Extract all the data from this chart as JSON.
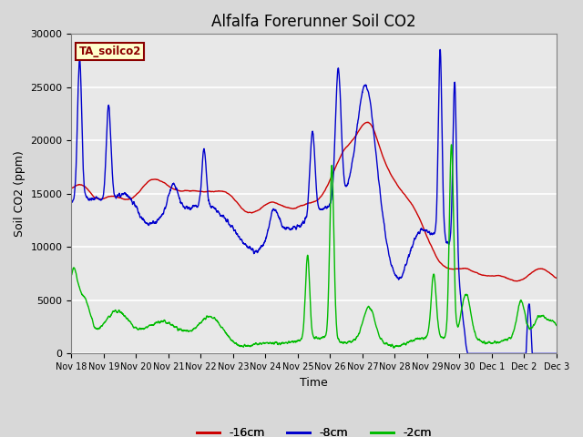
{
  "title": "Alfalfa Forerunner Soil CO2",
  "xlabel": "Time",
  "ylabel": "Soil CO2 (ppm)",
  "ylim": [
    0,
    30000
  ],
  "fig_bg_color": "#d8d8d8",
  "plot_bg_color": "#e8e8e8",
  "legend_label": "TA_soilco2",
  "legend_bg": "#ffffcc",
  "legend_border": "#8b0000",
  "line_colors": [
    "#cc0000",
    "#0000cc",
    "#00bb00"
  ],
  "line_labels": [
    "-16cm",
    "-8cm",
    "-2cm"
  ],
  "xtick_labels": [
    "Nov 18",
    "Nov 19",
    "Nov 20",
    "Nov 21",
    "Nov 22",
    "Nov 23",
    "Nov 24",
    "Nov 25",
    "Nov 26",
    "Nov 27",
    "Nov 28",
    "Nov 29",
    "Nov 30",
    "Dec 1",
    "Dec 2",
    "Dec 3"
  ],
  "ytick_values": [
    0,
    5000,
    10000,
    15000,
    20000,
    25000,
    30000
  ],
  "title_fontsize": 12
}
